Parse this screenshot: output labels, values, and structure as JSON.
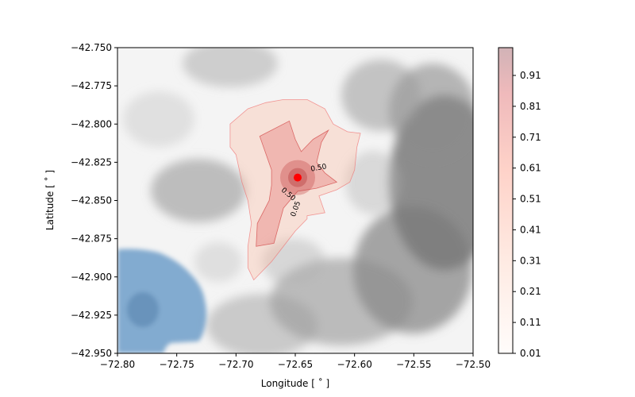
{
  "chart_data": {
    "type": "heatmap",
    "title": "",
    "xlabel": "Longitude [$^\\circ$]",
    "xlabel_text": "Longitude [ ˚ ]",
    "ylabel_text": "Latitude [ ˚ ]",
    "xlim": [
      -72.8,
      -72.5
    ],
    "ylim": [
      -42.95,
      -42.75
    ],
    "x_ticks": [
      -72.8,
      -72.75,
      -72.7,
      -72.65,
      -72.6,
      -72.55,
      -72.5
    ],
    "x_tick_labels": [
      "−72.80",
      "−72.75",
      "−72.70",
      "−72.65",
      "−72.60",
      "−72.55",
      "−72.50"
    ],
    "y_ticks": [
      -42.75,
      -42.775,
      -42.8,
      -42.825,
      -42.85,
      -42.875,
      -42.9,
      -42.925,
      -42.95
    ],
    "y_tick_labels": [
      "−42.750",
      "−42.775",
      "−42.800",
      "−42.825",
      "−42.850",
      "−42.875",
      "−42.900",
      "−42.925",
      "−42.950"
    ],
    "grid": false,
    "colorbar": {
      "range": [
        0.01,
        1.0
      ],
      "ticks": [
        0.01,
        0.11,
        0.21,
        0.31,
        0.41,
        0.51,
        0.61,
        0.71,
        0.81,
        0.91
      ],
      "tick_labels": [
        "0.01",
        "0.11",
        "0.21",
        "0.31",
        "0.41",
        "0.51",
        "0.61",
        "0.71",
        "0.81",
        "0.91"
      ],
      "colormap": "Reds",
      "alpha": 0.3
    },
    "vent": {
      "lon": -72.648,
      "lat": -42.835,
      "color": "#ff0000"
    },
    "contour_labels": [
      {
        "text": "0.50",
        "lon": -72.63,
        "lat": -42.83
      },
      {
        "text": "0.50",
        "lon": -72.657,
        "lat": -42.847
      },
      {
        "text": "0.05",
        "lon": -72.648,
        "lat": -42.856
      }
    ],
    "contours": [
      {
        "level": 0.05,
        "points": [
          [
            -72.66,
            -42.784
          ],
          [
            -72.64,
            -42.784
          ],
          [
            -72.625,
            -42.79
          ],
          [
            -72.618,
            -42.8
          ],
          [
            -72.606,
            -42.805
          ],
          [
            -72.595,
            -42.806
          ],
          [
            -72.598,
            -42.815
          ],
          [
            -72.6,
            -42.83
          ],
          [
            -72.604,
            -42.838
          ],
          [
            -72.615,
            -42.843
          ],
          [
            -72.63,
            -42.847
          ],
          [
            -72.625,
            -42.858
          ],
          [
            -72.64,
            -42.86
          ],
          [
            -72.64,
            -42.862
          ],
          [
            -72.65,
            -42.87
          ],
          [
            -72.66,
            -42.88
          ],
          [
            -72.67,
            -42.89
          ],
          [
            -72.685,
            -42.902
          ],
          [
            -72.69,
            -42.894
          ],
          [
            -72.69,
            -42.88
          ],
          [
            -72.687,
            -42.865
          ],
          [
            -72.69,
            -42.85
          ],
          [
            -72.695,
            -42.838
          ],
          [
            -72.7,
            -42.82
          ],
          [
            -72.705,
            -42.815
          ],
          [
            -72.705,
            -42.81
          ],
          [
            -72.705,
            -42.8
          ],
          [
            -72.69,
            -42.79
          ],
          [
            -72.675,
            -42.786
          ]
        ]
      },
      {
        "level": 0.5,
        "points": [
          [
            -72.68,
            -42.808
          ],
          [
            -72.655,
            -42.798
          ],
          [
            -72.65,
            -42.81
          ],
          [
            -72.645,
            -42.818
          ],
          [
            -72.635,
            -42.81
          ],
          [
            -72.622,
            -42.804
          ],
          [
            -72.628,
            -42.812
          ],
          [
            -72.632,
            -42.825
          ],
          [
            -72.625,
            -42.832
          ],
          [
            -72.615,
            -42.838
          ],
          [
            -72.632,
            -42.842
          ],
          [
            -72.648,
            -42.844
          ],
          [
            -72.66,
            -42.855
          ],
          [
            -72.668,
            -42.878
          ],
          [
            -72.683,
            -42.88
          ],
          [
            -72.682,
            -42.865
          ],
          [
            -72.672,
            -42.85
          ],
          [
            -72.67,
            -42.84
          ],
          [
            -72.67,
            -42.83
          ]
        ]
      }
    ]
  }
}
